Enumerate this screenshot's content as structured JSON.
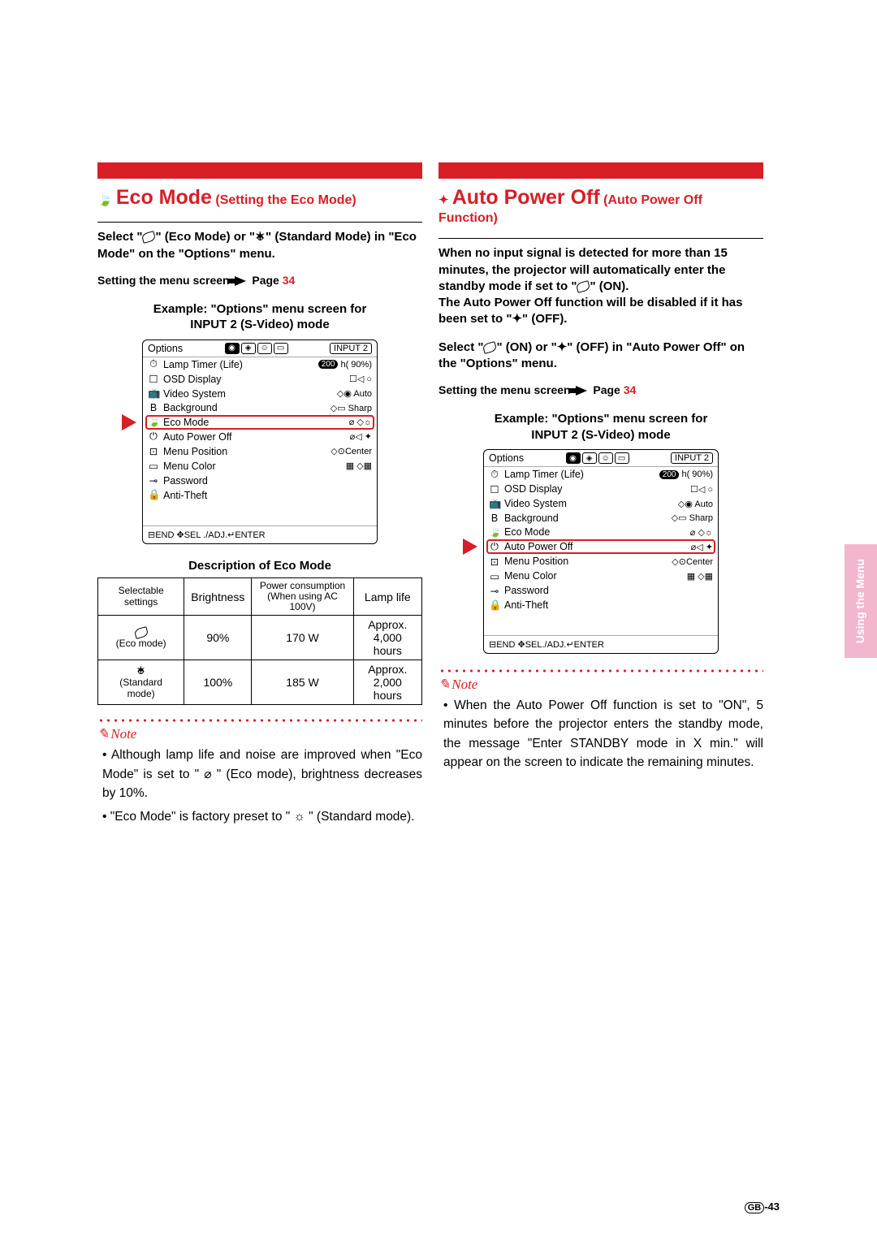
{
  "sideTab": "Using the\nMenu",
  "pageNumber": {
    "region": "GB",
    "num": "-43"
  },
  "colors": {
    "accent": "#d81e26",
    "sidetab_bg": "#f3b6cf",
    "sidetab_fg": "#ffffff"
  },
  "left": {
    "title_main": "Eco Mode",
    "title_sub": " (Setting the Eco Mode)",
    "lead_a": "Select \"",
    "lead_b": "\" (Eco Mode) or \"",
    "lead_c": "\" (Standard Mode) in \"Eco Mode\" on the \"Options\" menu.",
    "settingRef_a": "Setting the menu screen",
    "settingRef_b": "Page ",
    "settingRef_page": "34",
    "example_l1": "Example: \"Options\" menu screen for",
    "example_l2": "INPUT 2 (S-Video) mode",
    "menu": {
      "title": "Options",
      "input": "INPUT 2",
      "items": [
        {
          "icon": "⏱",
          "label": "Lamp Timer (Life)",
          "val_pill": "200",
          "val_suffix": "h(    90%)"
        },
        {
          "icon": "☐",
          "label": "OSD Display",
          "val": "☐◁  ○"
        },
        {
          "icon": "📺",
          "label": "Video System",
          "val": "◇◉ Auto"
        },
        {
          "icon": "B",
          "label": "Background",
          "val": "◇▭ Sharp"
        },
        {
          "icon": "🍃",
          "label": "Eco Mode",
          "val": "⌀    ◇☼",
          "highlight": true
        },
        {
          "icon": "⏻",
          "label": "Auto Power Off",
          "val": "⌀◁  ✦"
        },
        {
          "icon": "⊡",
          "label": "Menu Position",
          "val": "◇⊙Center"
        },
        {
          "icon": "▭",
          "label": "Menu Color",
          "val": "▦   ◇▦"
        },
        {
          "icon": "⊸",
          "label": "Password",
          "val": ""
        },
        {
          "icon": "🔒",
          "label": "Anti-Theft",
          "val": ""
        }
      ],
      "footer": "⊟END ✥SEL ./ADJ.↵ENTER"
    },
    "desc_title": "Description of Eco Mode",
    "table": {
      "headers": [
        "Selectable  settings",
        "Brightness",
        "Power consumption\n(When using AC 100V)",
        "Lamp life"
      ],
      "rows": [
        {
          "setting": "(Eco mode)",
          "icon": "leaf",
          "brightness": "90%",
          "power": "170 W",
          "life": "Approx.\n4,000 hours"
        },
        {
          "setting": "(Standard mode)",
          "icon": "sun",
          "brightness": "100%",
          "power": "185 W",
          "life": "Approx.\n2,000 hours"
        }
      ]
    },
    "noteLabel": "Note",
    "notes": [
      "Although lamp life and noise are improved when \"Eco Mode\" is set to \" ⌀ \" (Eco mode), brightness decreases by 10%.",
      "\"Eco Mode\" is factory preset to \" ☼ \" (Standard mode)."
    ]
  },
  "right": {
    "title_main": "Auto Power Off",
    "title_sub": " (Auto Power Off Function)",
    "para_a": "When no input signal is detected for more than 15 minutes, the projector will automatically enter the standby mode if set to \"",
    "para_b": "\" (ON).",
    "para_c": "The Auto Power Off function will be disabled if it has been set to \"",
    "para_d": "\" (OFF).",
    "lead_a": "Select \"",
    "lead_b": "\" (ON) or \"",
    "lead_c": "\" (OFF) in \"Auto Power Off\" on the \"Options\" menu.",
    "settingRef_a": "Setting the menu screen",
    "settingRef_b": "Page ",
    "settingRef_page": "34",
    "example_l1": "Example: \"Options\" menu screen for",
    "example_l2": "INPUT 2 (S-Video) mode",
    "menu": {
      "title": "Options",
      "input": "INPUT 2",
      "items": [
        {
          "icon": "⏱",
          "label": "Lamp Timer (Life)",
          "val_pill": "200",
          "val_suffix": "h(    90%)"
        },
        {
          "icon": "☐",
          "label": "OSD Display",
          "val": "☐◁  ○"
        },
        {
          "icon": "📺",
          "label": "Video System",
          "val": "◇◉ Auto"
        },
        {
          "icon": "B",
          "label": "Background",
          "val": "◇▭ Sharp"
        },
        {
          "icon": "🍃",
          "label": "Eco Mode",
          "val": "⌀    ◇☼"
        },
        {
          "icon": "⏻",
          "label": "Auto Power Off",
          "val": "⌀◁  ✦",
          "highlight": true
        },
        {
          "icon": "⊡",
          "label": "Menu Position",
          "val": "◇⊙Center"
        },
        {
          "icon": "▭",
          "label": "Menu Color",
          "val": "▦   ◇▦"
        },
        {
          "icon": "⊸",
          "label": "Password",
          "val": ""
        },
        {
          "icon": "🔒",
          "label": "Anti-Theft",
          "val": ""
        }
      ],
      "footer": "⊟END ✥SEL./ADJ.↵ENTER"
    },
    "noteLabel": "Note",
    "notes": [
      "When the Auto Power Off function is set to \"ON\", 5 minutes before the projector enters the standby mode, the message \"Enter STANDBY mode in X min.\" will appear on the screen to indicate the remaining minutes."
    ]
  }
}
